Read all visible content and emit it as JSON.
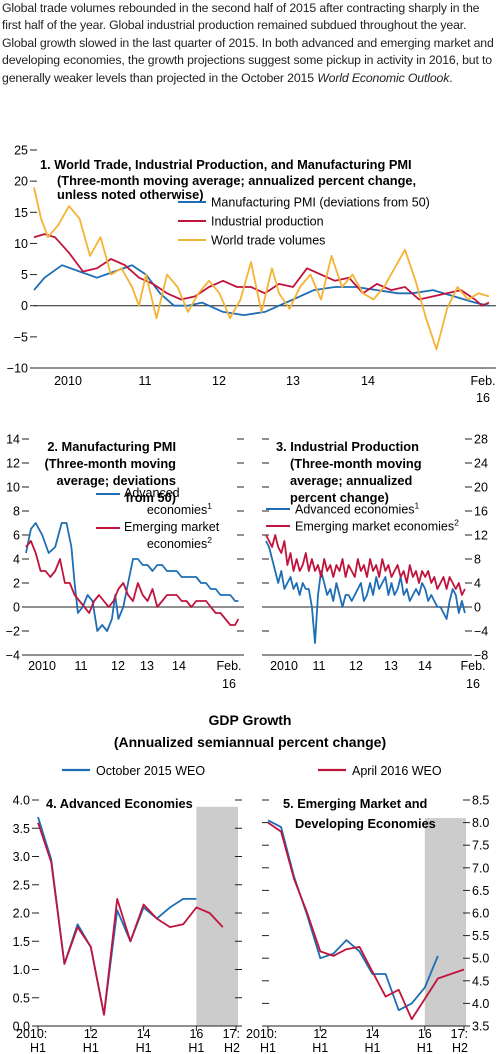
{
  "intro": {
    "text": "Global trade volumes rebounded in the second half of 2015 after contracting sharply in the first half of the year. Global industrial production remained subdued throughout the year. Global growth slowed in the last quarter of 2015. In both advanced and emerging market and developing economies, the growth projections suggest some pickup in activity in 2016, but to generally weaker levels than projected in the October 2015",
    "italic": "World Economic Outlook",
    "end": "."
  },
  "colors": {
    "blue": "#1f6db5",
    "red": "#c0143c",
    "gold": "#f5b335",
    "shade": "#cccccc",
    "axis": "#222222"
  },
  "gdp_section": {
    "title": "GDP Growth",
    "subtitle": "(Annualized semiannual percent change)",
    "legend": [
      "October 2015 WEO",
      "April 2016 WEO"
    ]
  },
  "chart_data": [
    {
      "id": "panel1",
      "type": "line",
      "title": [
        "1. World Trade, Industrial Production, and Manufacturing PMI",
        "(Three-month moving average; annualized percent change,",
        "unless noted otherwise)"
      ],
      "xlabels": [
        "2010",
        "11",
        "12",
        "13",
        "14",
        "Feb.",
        "16"
      ],
      "ylim": [
        -10,
        25
      ],
      "yticks": [
        "25",
        "20",
        "15",
        "10",
        "5",
        "0",
        "−5",
        "−10"
      ],
      "x_range": [
        2009.6,
        2016.2
      ],
      "legend_placement": "top-right",
      "series": [
        {
          "name": "Manufacturing PMI (deviations from 50)",
          "color": "blue",
          "x": [
            2009.6,
            2009.75,
            2010.0,
            2010.25,
            2010.5,
            2010.75,
            2011.0,
            2011.2,
            2011.4,
            2011.6,
            2011.8,
            2012.0,
            2012.3,
            2012.6,
            2012.9,
            2013.1,
            2013.3,
            2013.6,
            2013.9,
            2014.2,
            2014.5,
            2014.8,
            2015.0,
            2015.3,
            2015.6,
            2015.9,
            2016.1
          ],
          "y": [
            2.5,
            4.5,
            6.5,
            5.5,
            4.5,
            5.5,
            6.5,
            5,
            2,
            0,
            0,
            0.5,
            -1,
            -1.5,
            -1,
            0,
            1,
            2.5,
            3,
            3,
            2.5,
            2,
            2,
            2.5,
            1.5,
            0.5,
            0
          ]
        },
        {
          "name": "Industrial production",
          "color": "red",
          "x": [
            2009.6,
            2009.75,
            2009.9,
            2010.1,
            2010.3,
            2010.5,
            2010.7,
            2010.9,
            2011.1,
            2011.3,
            2011.5,
            2011.7,
            2011.9,
            2012.1,
            2012.3,
            2012.5,
            2012.7,
            2012.9,
            2013.1,
            2013.3,
            2013.5,
            2013.7,
            2013.9,
            2014.1,
            2014.3,
            2014.5,
            2014.7,
            2014.9,
            2015.1,
            2015.3,
            2015.5,
            2015.7,
            2015.9,
            2016.0,
            2016.1
          ],
          "y": [
            11,
            11.5,
            11,
            8.5,
            5.5,
            6,
            7.5,
            6.5,
            4.5,
            3.5,
            2,
            1,
            1.5,
            3,
            4,
            3,
            3,
            2,
            3.5,
            3,
            6,
            5,
            4,
            4.5,
            2,
            3.5,
            2.5,
            3,
            1,
            1.5,
            2,
            2.5,
            1,
            0,
            0.5
          ]
        },
        {
          "name": "World trade volumes",
          "color": "gold",
          "x": [
            2009.6,
            2009.7,
            2009.8,
            2009.95,
            2010.1,
            2010.25,
            2010.4,
            2010.55,
            2010.7,
            2010.85,
            2011.0,
            2011.1,
            2011.2,
            2011.35,
            2011.5,
            2011.65,
            2011.8,
            2011.95,
            2012.1,
            2012.25,
            2012.4,
            2012.55,
            2012.7,
            2012.85,
            2013.0,
            2013.1,
            2013.25,
            2013.4,
            2013.55,
            2013.7,
            2013.85,
            2014.0,
            2014.15,
            2014.3,
            2014.45,
            2014.6,
            2014.75,
            2014.9,
            2015.05,
            2015.2,
            2015.35,
            2015.5,
            2015.65,
            2015.8,
            2015.95,
            2016.1
          ],
          "y": [
            19,
            14,
            11,
            13,
            16,
            14,
            8,
            11,
            5,
            6,
            3,
            0,
            5,
            -2,
            5,
            3,
            -1,
            2,
            4,
            2,
            -2,
            1,
            7,
            -1,
            6,
            2,
            -0.5,
            3,
            5,
            1,
            8,
            3,
            5,
            2,
            1,
            3,
            6,
            9,
            4,
            -2,
            -7,
            -0.5,
            3,
            1,
            2,
            1.5
          ]
        }
      ]
    },
    {
      "id": "panel2",
      "type": "line",
      "title": [
        "2. Manufacturing PMI",
        "(Three-month moving",
        "average; deviations",
        "from 50)"
      ],
      "xlabels": [
        "2010",
        "11",
        "12",
        "13",
        "14",
        "Feb.",
        "16"
      ],
      "ylim": [
        -4,
        14
      ],
      "yticks": [
        "14",
        "12",
        "10",
        "8",
        "6",
        "4",
        "2",
        "0",
        "−2",
        "−4"
      ],
      "x_range": [
        2009.6,
        2016.2
      ],
      "legend_placement": "right",
      "series": [
        {
          "name": "Advanced economies",
          "sup": "1",
          "color": "blue",
          "x": [
            2009.6,
            2009.75,
            2009.9,
            2010.1,
            2010.3,
            2010.5,
            2010.7,
            2010.85,
            2011.0,
            2011.1,
            2011.2,
            2011.35,
            2011.5,
            2011.65,
            2011.8,
            2011.95,
            2012.1,
            2012.25,
            2012.35,
            2012.45,
            2012.6,
            2012.75,
            2012.9,
            2013.05,
            2013.2,
            2013.35,
            2013.5,
            2013.65,
            2013.8,
            2013.95,
            2014.1,
            2014.25,
            2014.4,
            2014.55,
            2014.7,
            2014.85,
            2015.0,
            2015.15,
            2015.3,
            2015.45,
            2015.6,
            2015.75,
            2015.9,
            2016.05,
            2016.15
          ],
          "y": [
            4.5,
            6.5,
            7,
            6,
            4.5,
            5,
            7,
            7,
            5,
            2,
            -0.5,
            0,
            1,
            0.5,
            -2,
            -1.5,
            -2,
            -1,
            1,
            -1,
            0,
            2,
            4,
            4,
            3.5,
            3.5,
            3,
            3.5,
            3.5,
            3,
            3,
            3,
            2.5,
            2.5,
            2.5,
            2.5,
            2,
            2,
            1.5,
            1.5,
            1,
            1,
            1,
            0.5,
            0.5
          ]
        },
        {
          "name": "Emerging market economies",
          "sup": "2",
          "color": "red",
          "x": [
            2009.6,
            2009.75,
            2009.9,
            2010.05,
            2010.2,
            2010.35,
            2010.5,
            2010.65,
            2010.8,
            2010.95,
            2011.1,
            2011.25,
            2011.4,
            2011.55,
            2011.7,
            2011.85,
            2012.0,
            2012.15,
            2012.3,
            2012.45,
            2012.6,
            2012.75,
            2012.9,
            2013.05,
            2013.2,
            2013.35,
            2013.5,
            2013.65,
            2013.8,
            2013.95,
            2014.1,
            2014.25,
            2014.4,
            2014.55,
            2014.7,
            2014.85,
            2015.0,
            2015.15,
            2015.3,
            2015.45,
            2015.6,
            2015.75,
            2015.9,
            2016.05,
            2016.15
          ],
          "y": [
            5,
            5.5,
            4.5,
            3,
            3,
            2.5,
            3,
            4,
            2,
            2,
            1,
            0.5,
            0,
            -0.5,
            0.5,
            1,
            0.5,
            0,
            0.5,
            1.5,
            2,
            1,
            0.5,
            2,
            1,
            0.5,
            1.5,
            0,
            0.5,
            1,
            1,
            1,
            0.5,
            0.5,
            0,
            0.5,
            0.5,
            0.5,
            0,
            -0.5,
            -0.5,
            -1,
            -1.5,
            -1.5,
            -1
          ]
        }
      ]
    },
    {
      "id": "panel3",
      "type": "line",
      "title": [
        "3. Industrial Production",
        "(Three-month moving",
        "average; annualized",
        "percent change)"
      ],
      "xlabels": [
        "2010",
        "11",
        "12",
        "13",
        "14",
        "Feb.",
        "16"
      ],
      "ylim": [
        -8,
        28
      ],
      "yticks": [
        "28",
        "24",
        "20",
        "16",
        "12",
        "8",
        "4",
        "0",
        "−4",
        "−8"
      ],
      "x_range": [
        2009.6,
        2016.2
      ],
      "legend_placement": "top-left",
      "series": [
        {
          "name": "Advanced economies",
          "sup": "1",
          "color": "blue",
          "x": [
            2009.6,
            2009.7,
            2009.8,
            2009.9,
            2010.0,
            2010.1,
            2010.2,
            2010.3,
            2010.4,
            2010.5,
            2010.6,
            2010.7,
            2010.8,
            2010.9,
            2011.0,
            2011.1,
            2011.2,
            2011.3,
            2011.4,
            2011.5,
            2011.6,
            2011.7,
            2011.8,
            2011.9,
            2012.0,
            2012.1,
            2012.2,
            2012.3,
            2012.4,
            2012.5,
            2012.6,
            2012.7,
            2012.8,
            2012.9,
            2013.0,
            2013.1,
            2013.2,
            2013.3,
            2013.4,
            2013.5,
            2013.6,
            2013.7,
            2013.8,
            2013.9,
            2014.0,
            2014.1,
            2014.2,
            2014.3,
            2014.4,
            2014.5,
            2014.6,
            2014.7,
            2014.8,
            2014.9,
            2015.0,
            2015.1,
            2015.2,
            2015.3,
            2015.4,
            2015.5,
            2015.6,
            2015.7,
            2015.8,
            2015.9,
            2016.0,
            2016.1
          ],
          "y": [
            11,
            10,
            8,
            6,
            4,
            6,
            3,
            4,
            5,
            3,
            4,
            2,
            4,
            3,
            3,
            0,
            -6,
            2,
            6,
            4,
            2,
            3,
            1,
            4,
            2,
            0,
            2,
            2,
            1,
            2,
            3,
            4,
            1,
            2,
            4,
            2,
            5,
            3,
            4,
            5,
            2,
            4,
            2,
            3,
            5,
            2,
            3,
            1,
            2,
            3,
            2,
            4,
            3,
            1,
            2,
            1,
            0,
            0,
            -1,
            -2,
            1,
            3,
            2,
            -1,
            1,
            -1
          ]
        },
        {
          "name": "Emerging market economies",
          "sup": "2",
          "color": "red",
          "x": [
            2009.6,
            2009.7,
            2009.8,
            2009.9,
            2010.0,
            2010.1,
            2010.2,
            2010.3,
            2010.4,
            2010.5,
            2010.6,
            2010.7,
            2010.8,
            2010.9,
            2011.0,
            2011.1,
            2011.2,
            2011.3,
            2011.4,
            2011.5,
            2011.6,
            2011.7,
            2011.8,
            2011.9,
            2012.0,
            2012.1,
            2012.2,
            2012.3,
            2012.4,
            2012.5,
            2012.6,
            2012.7,
            2012.8,
            2012.9,
            2013.0,
            2013.1,
            2013.2,
            2013.3,
            2013.4,
            2013.5,
            2013.6,
            2013.7,
            2013.8,
            2013.9,
            2014.0,
            2014.1,
            2014.2,
            2014.3,
            2014.4,
            2014.5,
            2014.6,
            2014.7,
            2014.8,
            2014.9,
            2015.0,
            2015.1,
            2015.2,
            2015.3,
            2015.4,
            2015.5,
            2015.6,
            2015.7,
            2015.8,
            2015.9,
            2016.0,
            2016.1
          ],
          "y": [
            12,
            11,
            10,
            12,
            10,
            9,
            11,
            7,
            9,
            6,
            8,
            6,
            7,
            9,
            6,
            8,
            6,
            7,
            5,
            8,
            6,
            7,
            5,
            7,
            6,
            8,
            5,
            7,
            6,
            5,
            8,
            6,
            7,
            5,
            8,
            6,
            7,
            5,
            8,
            6,
            7,
            5,
            6,
            7,
            5,
            6,
            4,
            7,
            5,
            6,
            4,
            6,
            5,
            6,
            4,
            5,
            3,
            4,
            5,
            3,
            5,
            4,
            3,
            4,
            2,
            3
          ]
        }
      ]
    },
    {
      "id": "panel4",
      "type": "line",
      "title": [
        "4. Advanced Economies"
      ],
      "xlabels": [
        "2010:",
        "H1",
        "12",
        "H1",
        "14",
        "H1",
        "16",
        "H1",
        "17:",
        "H2"
      ],
      "ylim": [
        0,
        4
      ],
      "yticks": [
        "4.0",
        "3.5",
        "3.0",
        "2.5",
        "2.0",
        "1.5",
        "1.0",
        "0.5",
        "0.0"
      ],
      "categories": [
        "2010:H1",
        "2010:H2",
        "2011:H1",
        "2011:H2",
        "2012:H1",
        "2012:H2",
        "2013:H1",
        "2013:H2",
        "2014:H1",
        "2014:H2",
        "2015:H1",
        "2015:H2",
        "2016:H1",
        "2016:H2",
        "2017:H1",
        "2017:H2"
      ],
      "shaded_from_index": 12,
      "series": [
        {
          "name": "October 2015 WEO",
          "color": "blue",
          "values": [
            3.7,
            2.95,
            1.1,
            1.8,
            1.4,
            0.2,
            2.05,
            1.5,
            2.1,
            1.9,
            2.1,
            2.25,
            2.25,
            null,
            null,
            null
          ]
        },
        {
          "name": "April 2016 WEO",
          "color": "red",
          "values": [
            3.6,
            2.9,
            1.1,
            1.75,
            1.4,
            0.2,
            2.25,
            1.5,
            2.15,
            1.9,
            1.75,
            1.8,
            2.1,
            2.0,
            1.75,
            null
          ]
        }
      ]
    },
    {
      "id": "panel5",
      "type": "line",
      "title": [
        "5. Emerging Market and",
        "Developing Economies"
      ],
      "xlabels": [
        "2010:",
        "H1",
        "12",
        "H1",
        "14",
        "H1",
        "16",
        "H1",
        "17:",
        "H2"
      ],
      "ylim": [
        3.5,
        8.5
      ],
      "yticks": [
        "8.5",
        "8.0",
        "7.5",
        "7.0",
        "6.5",
        "6.0",
        "5.5",
        "5.0",
        "4.5",
        "4.0",
        "3.5"
      ],
      "categories": [
        "2010:H1",
        "2010:H2",
        "2011:H1",
        "2011:H2",
        "2012:H1",
        "2012:H2",
        "2013:H1",
        "2013:H2",
        "2014:H1",
        "2014:H2",
        "2015:H1",
        "2015:H2",
        "2016:H1",
        "2016:H2",
        "2017:H1",
        "2017:H2"
      ],
      "shaded_from_index": 12,
      "series": [
        {
          "name": "October 2015 WEO",
          "color": "blue",
          "values": [
            8.05,
            7.9,
            6.8,
            5.95,
            5.0,
            5.1,
            5.4,
            5.15,
            4.65,
            4.65,
            3.85,
            4.0,
            4.35,
            5.05,
            null,
            null
          ]
        },
        {
          "name": "April 2016 WEO",
          "color": "red",
          "values": [
            8.0,
            7.8,
            6.75,
            6.0,
            5.15,
            5.05,
            5.2,
            5.25,
            4.7,
            4.15,
            4.3,
            3.65,
            4.1,
            4.55,
            4.65,
            4.75
          ]
        }
      ]
    }
  ]
}
